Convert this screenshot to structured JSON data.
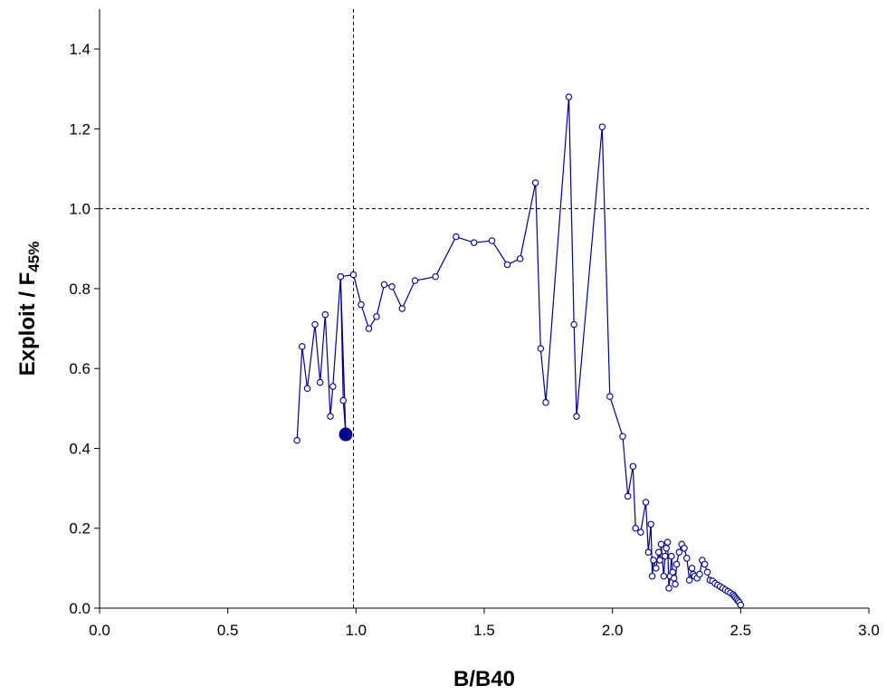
{
  "chart_data": {
    "type": "scatter",
    "title": "",
    "xlabel": "B/B40",
    "ylabel": "Exploit / F",
    "ylabel_subscript": "45%",
    "xlim": [
      0,
      3
    ],
    "ylim": [
      0,
      1.5
    ],
    "x_ticks": [
      0,
      0.5,
      1,
      1.5,
      2,
      2.5,
      3
    ],
    "y_ticks": [
      0,
      0.2,
      0.4,
      0.6,
      0.8,
      1.0,
      1.2,
      1.4
    ],
    "x_tick_labels": [
      "0.0",
      "0.5",
      "1.0",
      "1.5",
      "2.0",
      "2.5",
      "3.0"
    ],
    "y_tick_labels": [
      "0.0",
      "0.2",
      "0.4",
      "0.6",
      "0.8",
      "1.0",
      "1.2",
      "1.4"
    ],
    "grid": false,
    "reference_lines": [
      {
        "orientation": "vertical",
        "value": 0.99,
        "style": "dashed"
      },
      {
        "orientation": "horizontal",
        "value": 1.0,
        "style": "dashed"
      }
    ],
    "series": [
      {
        "style": "line-with-open-markers",
        "color": "#00008B",
        "x": [
          0.77,
          0.79,
          0.81,
          0.84,
          0.86,
          0.88,
          0.9,
          0.91,
          0.94,
          0.95,
          0.96,
          0.94,
          0.99,
          1.02,
          1.05,
          1.08,
          1.11,
          1.14,
          1.18,
          1.23,
          1.31,
          1.39,
          1.46,
          1.53,
          1.59,
          1.64,
          1.7,
          1.72,
          1.74,
          1.83,
          1.85,
          1.86,
          1.96,
          1.99,
          2.04,
          2.06,
          2.08,
          2.09,
          2.11,
          2.13,
          2.14,
          2.15,
          2.155,
          2.16,
          2.17,
          2.18,
          2.185,
          2.19,
          2.2,
          2.205,
          2.21,
          2.215,
          2.22,
          2.225,
          2.23,
          2.235,
          2.24,
          2.245,
          2.25,
          2.26,
          2.27,
          2.28,
          2.29,
          2.3,
          2.31,
          2.315,
          2.32,
          2.33,
          2.34,
          2.35,
          2.36,
          2.37,
          2.38,
          2.39,
          2.4,
          2.41,
          2.42,
          2.43,
          2.44,
          2.45,
          2.46,
          2.47,
          2.475,
          2.48,
          2.485,
          2.49,
          2.495,
          2.5
        ],
        "y": [
          0.42,
          0.655,
          0.55,
          0.71,
          0.565,
          0.735,
          0.48,
          0.555,
          0.83,
          0.52,
          0.435,
          0.83,
          0.835,
          0.76,
          0.7,
          0.73,
          0.81,
          0.805,
          0.75,
          0.82,
          0.83,
          0.93,
          0.915,
          0.92,
          0.86,
          0.875,
          1.065,
          0.65,
          0.515,
          1.28,
          0.71,
          0.48,
          1.205,
          0.53,
          0.43,
          0.28,
          0.355,
          0.2,
          0.19,
          0.265,
          0.14,
          0.21,
          0.08,
          0.12,
          0.1,
          0.14,
          0.12,
          0.16,
          0.08,
          0.13,
          0.15,
          0.165,
          0.05,
          0.08,
          0.13,
          0.09,
          0.075,
          0.06,
          0.11,
          0.14,
          0.16,
          0.15,
          0.125,
          0.07,
          0.1,
          0.085,
          0.08,
          0.075,
          0.085,
          0.12,
          0.11,
          0.09,
          0.07,
          0.068,
          0.062,
          0.058,
          0.054,
          0.05,
          0.046,
          0.042,
          0.038,
          0.034,
          0.03,
          0.026,
          0.022,
          0.018,
          0.014,
          0.008
        ]
      }
    ],
    "highlight_point": {
      "x": 0.96,
      "y": 0.435,
      "style": "filled",
      "color": "#00008B"
    }
  }
}
